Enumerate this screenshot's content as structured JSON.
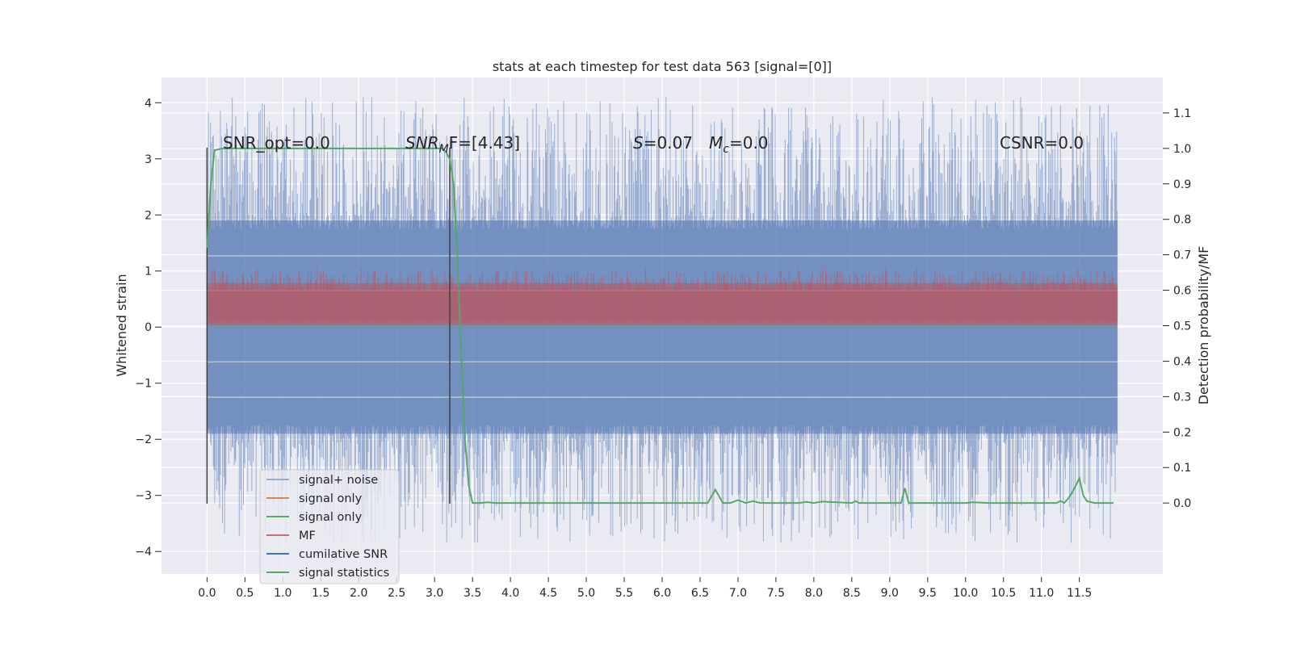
{
  "chart_data": {
    "type": "line",
    "title": "stats at each timestep for test data 563 [signal=[0]]",
    "ylabel": "Whitened strain",
    "ylabel_right": "Detection probability/MF",
    "xlabel": "",
    "xlim": [
      -0.6,
      12.6
    ],
    "ylim": [
      -4.4,
      4.45
    ],
    "ylim_right": [
      -0.2,
      1.2
    ],
    "x_ticks": [
      0.0,
      0.5,
      1.0,
      1.5,
      2.0,
      2.5,
      3.0,
      3.5,
      4.0,
      4.5,
      5.0,
      5.5,
      6.0,
      6.5,
      7.0,
      7.5,
      8.0,
      8.5,
      9.0,
      9.5,
      10.0,
      10.5,
      11.0,
      11.5
    ],
    "x_tick_labels": [
      "0.0",
      "0.5",
      "1.0",
      "1.5",
      "2.0",
      "2.5",
      "3.0",
      "3.5",
      "4.0",
      "4.5",
      "5.0",
      "5.5",
      "6.0",
      "6.5",
      "7.0",
      "7.5",
      "8.0",
      "8.5",
      "9.0",
      "9.5",
      "10.0",
      "10.5",
      "11.0",
      "11.5"
    ],
    "y_ticks": [
      -4,
      -3,
      -2,
      -1,
      0,
      1,
      2,
      3,
      4
    ],
    "y_tick_labels": [
      "−4",
      "−3",
      "−2",
      "−1",
      "0",
      "1",
      "2",
      "3",
      "4"
    ],
    "y_right_ticks": [
      0.0,
      0.1,
      0.2,
      0.3,
      0.4,
      0.5,
      0.6,
      0.7,
      0.8,
      0.9,
      1.0,
      1.1
    ],
    "y_right_tick_labels": [
      "0.0",
      "0.1",
      "0.2",
      "0.3",
      "0.4",
      "0.5",
      "0.6",
      "0.7",
      "0.8",
      "0.9",
      "1.0",
      "1.1"
    ],
    "grid": true,
    "legend_location": "lower-left",
    "annotations": [
      {
        "text": "SNR_opt=0.0"
      },
      {
        "text_main": "SNR",
        "text_sub": "M",
        "text_rest": "F=[4.43]"
      },
      {
        "text_main": "S",
        "text_rest": "=0.07"
      },
      {
        "text_main": "M",
        "text_sub": "c",
        "text_rest": "=0.0"
      },
      {
        "text": "CSNR=0.0"
      }
    ],
    "vertical_markers": [
      {
        "x": 0.0,
        "y_range": [
          -3.15,
          3.2
        ],
        "color": "#404040"
      },
      {
        "x": 3.2,
        "y_range": [
          -3.15,
          3.2
        ],
        "color": "#404040"
      }
    ],
    "series": [
      {
        "name": "signal+ noise",
        "color": "#4c72b0",
        "opacity": 0.5,
        "x_range": [
          0.0,
          12.0
        ],
        "mean": 0.0,
        "band_low": -1.9,
        "band_high": 1.9,
        "peak_max": 4.1,
        "peak_min": -3.85
      },
      {
        "name": "signal only",
        "color": "#dd8452",
        "x_range": [
          0.0,
          12.0
        ],
        "values": [
          0.0,
          0.0
        ]
      },
      {
        "name": "signal only",
        "color": "#55a868",
        "x_range": [
          0.0,
          12.0
        ],
        "values": [
          0.0,
          0.0
        ]
      },
      {
        "name": "MF",
        "color": "#c44e52",
        "opacity": 0.6,
        "axis": "right",
        "x_range": [
          0.0,
          12.0
        ],
        "band_low": 0.5,
        "band_high": 0.62,
        "peak_max": 0.66
      },
      {
        "name": "cumilative SNR",
        "color": "#4c72b0",
        "x_range": [
          0.0,
          12.0
        ],
        "values": []
      },
      {
        "name": "signal statistics",
        "color": "#55a868",
        "axis": "right",
        "x": [
          0.0,
          0.05,
          0.1,
          0.2,
          0.5,
          1.0,
          2.0,
          3.0,
          3.1,
          3.15,
          3.2,
          3.25,
          3.3,
          3.35,
          3.4,
          3.45,
          3.5,
          3.6,
          3.7,
          3.8,
          4.0,
          5.0,
          6.0,
          6.6,
          6.7,
          6.8,
          6.9,
          7.0,
          7.1,
          7.2,
          7.3,
          7.5,
          7.8,
          7.9,
          8.0,
          8.1,
          8.5,
          8.55,
          8.6,
          9.0,
          9.15,
          9.2,
          9.25,
          9.3,
          10.0,
          10.1,
          10.3,
          11.0,
          11.2,
          11.25,
          11.3,
          11.35,
          11.4,
          11.45,
          11.5,
          11.55,
          11.6,
          11.7,
          11.8,
          11.95
        ],
        "values": [
          0.72,
          0.9,
          0.995,
          1.0,
          1.0,
          1.0,
          1.0,
          1.0,
          1.0,
          0.99,
          0.97,
          0.9,
          0.7,
          0.42,
          0.18,
          0.05,
          0.0,
          0.0,
          0.002,
          0.0,
          0.0,
          0.0,
          0.0,
          0.0,
          0.038,
          0.0,
          0.0,
          0.008,
          0.0,
          0.005,
          0.0,
          0.0,
          0.0,
          0.003,
          0.0,
          0.004,
          0.0,
          0.005,
          0.0,
          0.0,
          0.0,
          0.042,
          0.0,
          0.0,
          0.0,
          0.002,
          0.0,
          0.0,
          0.0,
          0.006,
          0.0,
          0.012,
          0.028,
          0.048,
          0.07,
          0.022,
          0.005,
          0.0,
          0.0,
          0.0
        ]
      }
    ]
  }
}
